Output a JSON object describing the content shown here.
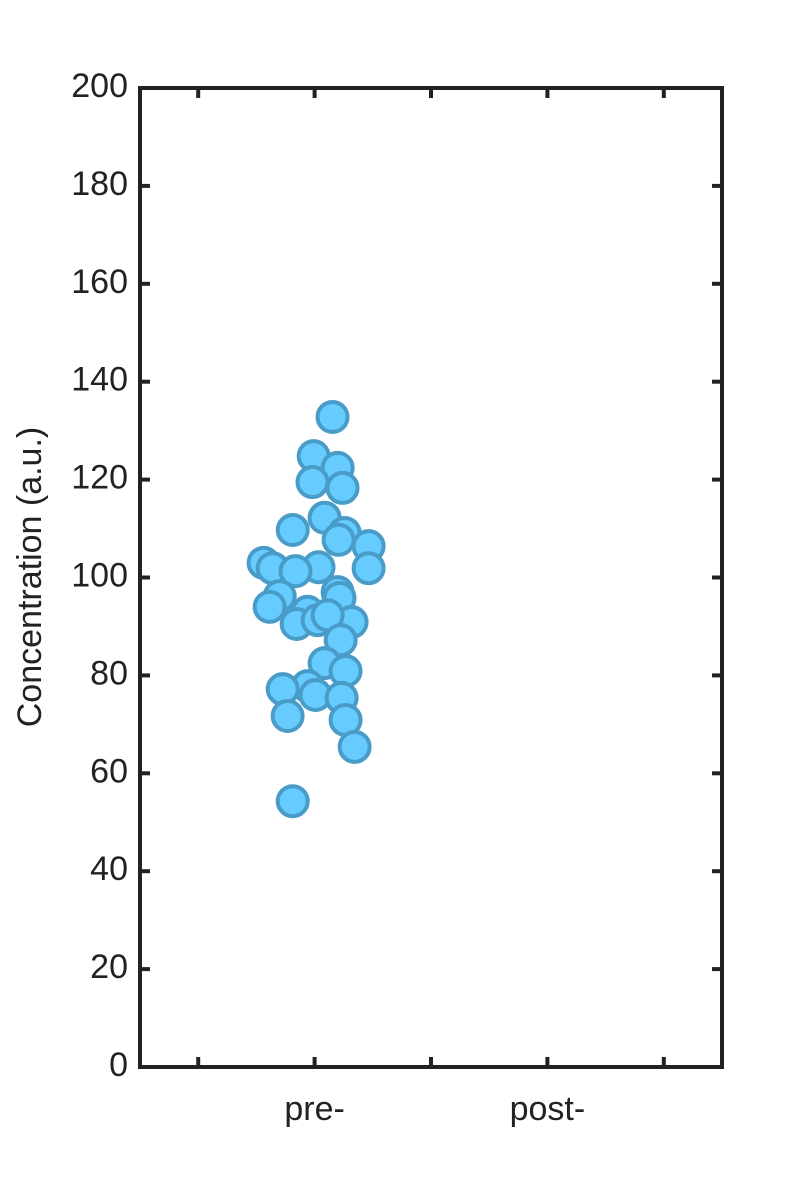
{
  "chart_data": {
    "type": "scatter",
    "ylabel": "Concentration (a.u.)",
    "xlim": [
      0.25,
      2.75
    ],
    "xticks": [
      {
        "value": 1,
        "label": "pre-"
      },
      {
        "value": 2,
        "label": "post-"
      }
    ],
    "xminorticks": [
      0.5,
      1.5,
      2.5
    ],
    "ylim": [
      0,
      200
    ],
    "yticks": [
      0,
      20,
      40,
      60,
      80,
      100,
      120,
      140,
      160,
      180,
      200
    ],
    "grid": false,
    "series": [
      {
        "color": "#66ccff",
        "edgecolor": "#4a9cc8",
        "x": [
          1.077,
          0.996,
          1.099,
          0.991,
          1.12,
          1.043,
          0.906,
          1.129,
          1.103,
          1.232,
          0.781,
          0.82,
          1.017,
          1.232,
          0.918,
          1.099,
          0.85,
          1.107,
          0.807,
          0.97,
          0.923,
          1.013,
          1.159,
          1.056,
          1.112,
          1.043,
          1.133,
          0.97,
          0.863,
          1.004,
          1.116,
          0.884,
          1.133,
          1.172,
          0.906
        ],
        "values": [
          132.8,
          124.8,
          122.4,
          119.5,
          118.3,
          112.2,
          109.7,
          109.1,
          107.7,
          106.4,
          103.0,
          101.9,
          102.1,
          101.9,
          101.3,
          97.0,
          96.2,
          95.8,
          94.0,
          93.0,
          90.5,
          91.3,
          90.9,
          92.3,
          87.2,
          82.5,
          80.9,
          77.8,
          77.2,
          76.0,
          75.4,
          71.7,
          70.9,
          65.4,
          54.3
        ]
      }
    ]
  }
}
